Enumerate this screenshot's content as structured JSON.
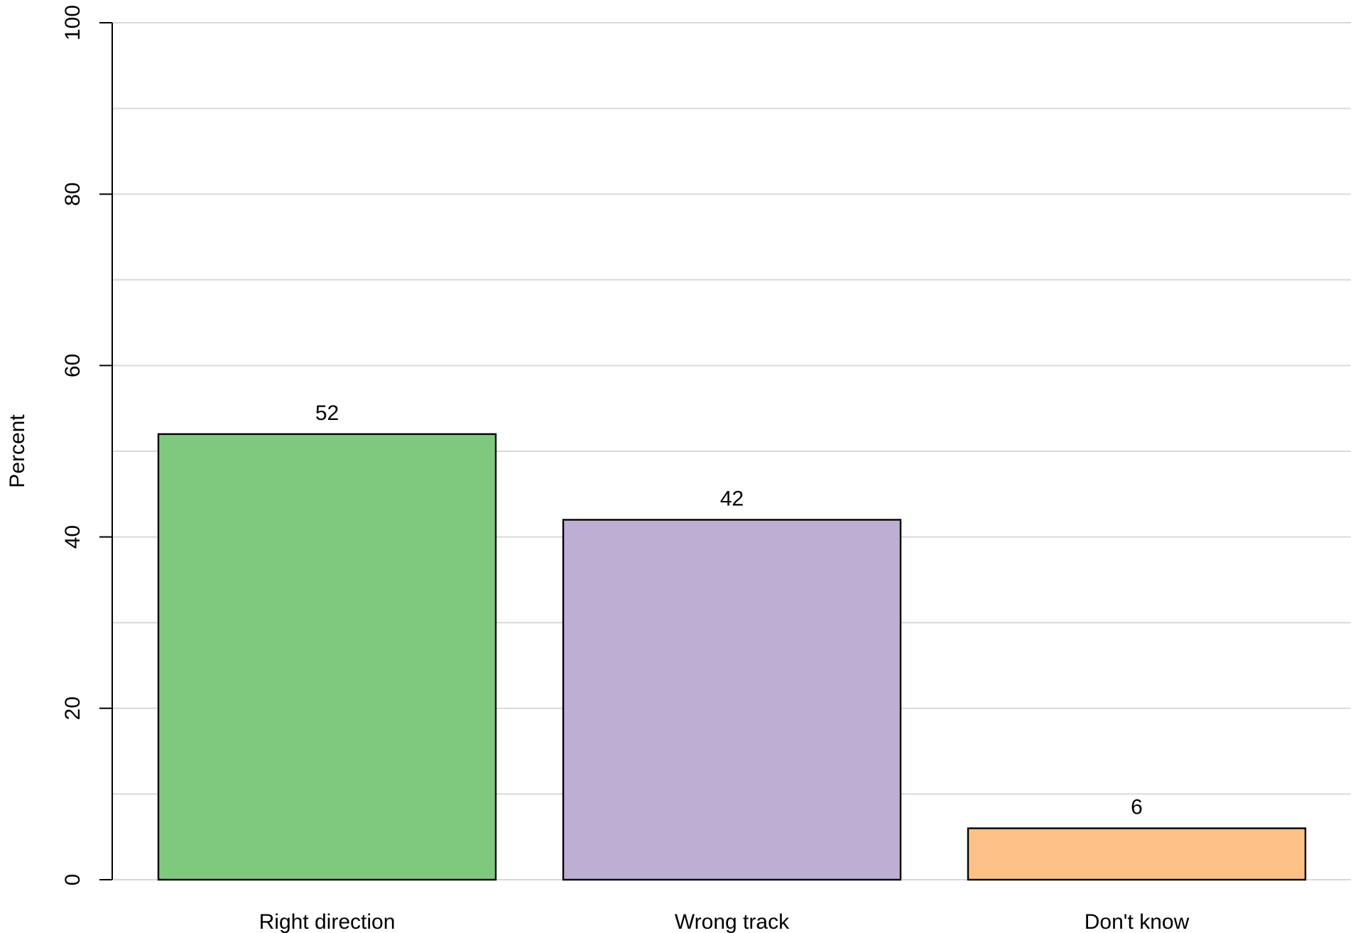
{
  "chart_data": {
    "type": "bar",
    "categories": [
      "Right direction",
      "Wrong track",
      "Don't know"
    ],
    "values": [
      52,
      42,
      6
    ],
    "data_labels": [
      "52",
      "42",
      "6"
    ],
    "colors": [
      "#7fc97f",
      "#beaed4",
      "#fdc086"
    ],
    "ylabel": "Percent",
    "xlabel": "",
    "title": "",
    "ylim": [
      0,
      100
    ],
    "yticks": [
      0,
      20,
      40,
      60,
      80,
      100
    ],
    "ytick_labels": [
      "0",
      "20",
      "40",
      "60",
      "80",
      "100"
    ],
    "grid_minor_step": 10,
    "grid": true,
    "legend": "none"
  }
}
